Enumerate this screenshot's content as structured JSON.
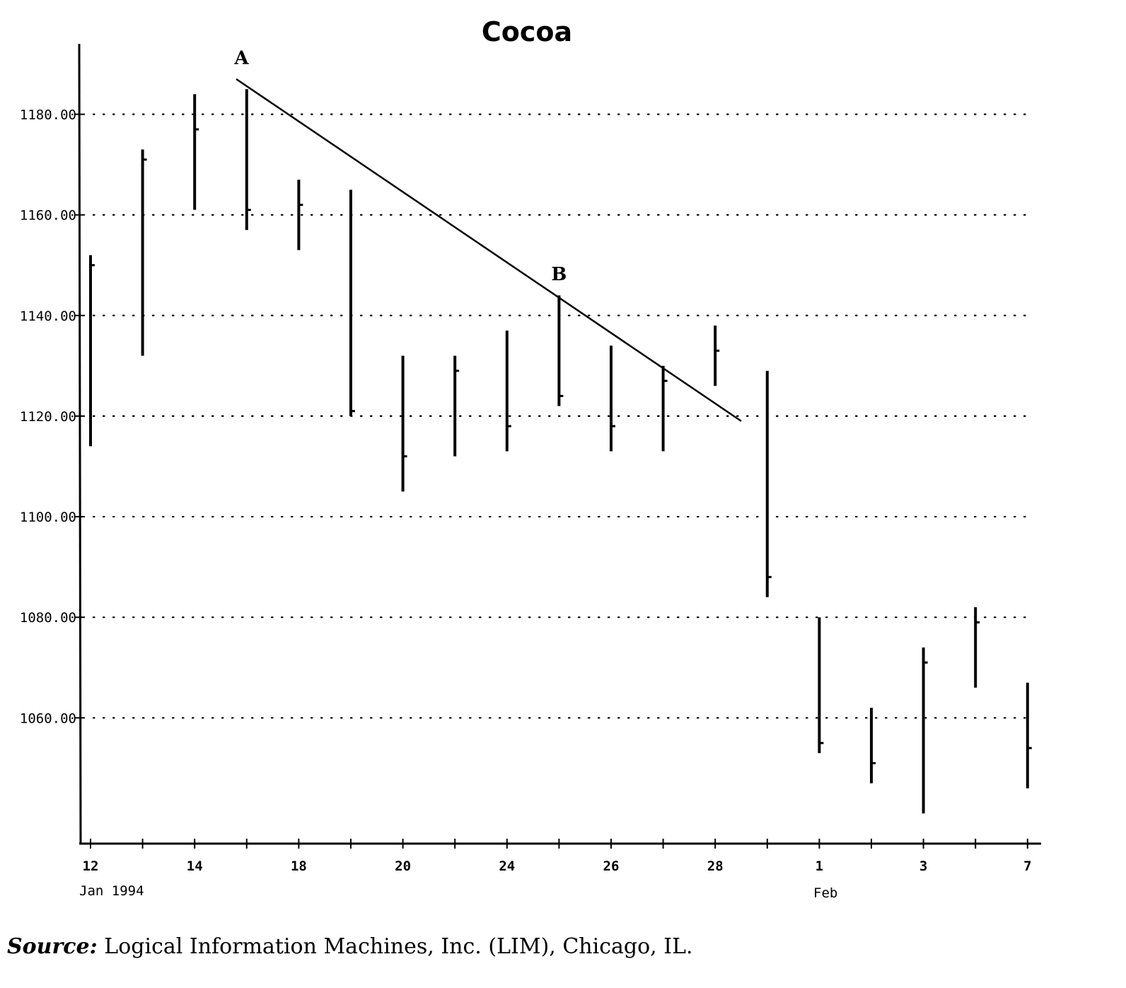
{
  "chart_data": {
    "type": "ohlc",
    "title": "Cocoa",
    "ylim": [
      1035,
      1194
    ],
    "yticks": [
      1060,
      1080,
      1100,
      1120,
      1140,
      1160,
      1180
    ],
    "ytick_labels": [
      "1060.00",
      "1080.00",
      "1100.00",
      "1120.00",
      "1140.00",
      "1160.00",
      "1180.00"
    ],
    "grid": "horizontal dotted",
    "x_tick_labels": [
      "12",
      "14",
      "18",
      "20",
      "24",
      "26",
      "28",
      "1",
      "3",
      "7"
    ],
    "x_month_labels": [
      "Jan 1994",
      "Feb"
    ],
    "bars": [
      {
        "high": 1152,
        "low": 1114,
        "close": 1150
      },
      {
        "high": 1173,
        "low": 1132,
        "close": 1171
      },
      {
        "high": 1184,
        "low": 1161,
        "close": 1177
      },
      {
        "high": 1185,
        "low": 1157,
        "close": 1161
      },
      {
        "high": 1167,
        "low": 1153,
        "close": 1162
      },
      {
        "high": 1165,
        "low": 1120,
        "close": 1121
      },
      {
        "high": 1132,
        "low": 1105,
        "close": 1112
      },
      {
        "high": 1132,
        "low": 1112,
        "close": 1129
      },
      {
        "high": 1137,
        "low": 1113,
        "close": 1118
      },
      {
        "high": 1144,
        "low": 1122,
        "close": 1124
      },
      {
        "high": 1134,
        "low": 1113,
        "close": 1118
      },
      {
        "high": 1130,
        "low": 1113,
        "close": 1127
      },
      {
        "high": 1138,
        "low": 1126,
        "close": 1133
      },
      {
        "high": 1129,
        "low": 1084,
        "close": 1088
      },
      {
        "high": 1080,
        "low": 1053,
        "close": 1055
      },
      {
        "high": 1062,
        "low": 1047,
        "close": 1051
      },
      {
        "high": 1074,
        "low": 1041,
        "close": 1071
      },
      {
        "high": 1082,
        "low": 1066,
        "close": 1079
      },
      {
        "high": 1067,
        "low": 1046,
        "close": 1054
      }
    ],
    "trendline": {
      "start": {
        "bar": 2.8,
        "value": 1187
      },
      "end": {
        "bar": 12.5,
        "value": 1119
      }
    },
    "annotations": [
      {
        "text": "A",
        "bar": 2.9,
        "value": 1190
      },
      {
        "text": "B",
        "bar": 9.0,
        "value": 1147
      }
    ]
  },
  "source": {
    "label": "Source:",
    "text": "Logical Information Machines, Inc. (LIM), Chicago, IL."
  }
}
